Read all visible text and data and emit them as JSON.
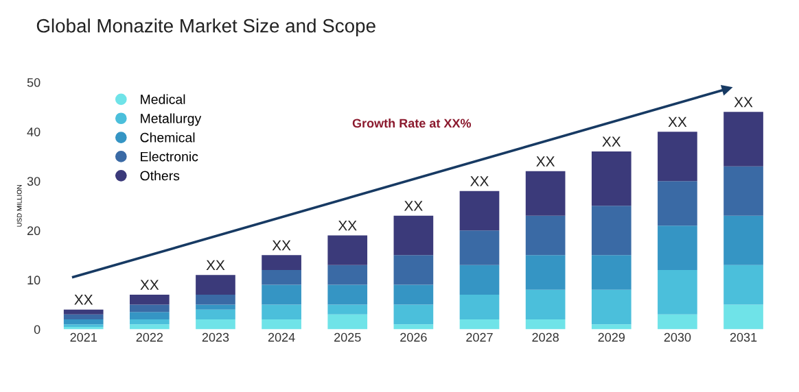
{
  "chart_data": {
    "type": "bar",
    "stacked": true,
    "title": "Global Monazite Market Size and Scope",
    "ylabel": "USD MILLION",
    "categories": [
      "2021",
      "2022",
      "2023",
      "2024",
      "2025",
      "2026",
      "2027",
      "2028",
      "2029",
      "2030",
      "2031"
    ],
    "series": [
      {
        "name": "Medical",
        "color": "#6fe3e8",
        "values": [
          0.5,
          1,
          2,
          2,
          3,
          1,
          2,
          2,
          1,
          3,
          5
        ]
      },
      {
        "name": "Metallurgy",
        "color": "#4bbfdb",
        "values": [
          0.5,
          1,
          2,
          3,
          2,
          4,
          5,
          6,
          7,
          9,
          8
        ]
      },
      {
        "name": "Chemical",
        "color": "#3595c4",
        "values": [
          1,
          1.5,
          1,
          4,
          4,
          4,
          6,
          7,
          7,
          9,
          10
        ]
      },
      {
        "name": "Electronic",
        "color": "#3a6aa5",
        "values": [
          1,
          1.5,
          2,
          3,
          4,
          6,
          7,
          8,
          10,
          9,
          10
        ]
      },
      {
        "name": "Others",
        "color": "#3b3a7a",
        "values": [
          1,
          2,
          4,
          3,
          6,
          8,
          8,
          9,
          11,
          10,
          11
        ]
      }
    ],
    "totals": [
      "XX",
      "XX",
      "XX",
      "XX",
      "XX",
      "XX",
      "XX",
      "XX",
      "XX",
      "XX",
      "XX"
    ],
    "ylim": [
      0,
      50
    ],
    "yticks": [
      0,
      10,
      20,
      30,
      40,
      50
    ],
    "grid": false,
    "legend": "top left",
    "marker": "circle",
    "annotations": [
      "Growth Rate at XX%"
    ]
  }
}
